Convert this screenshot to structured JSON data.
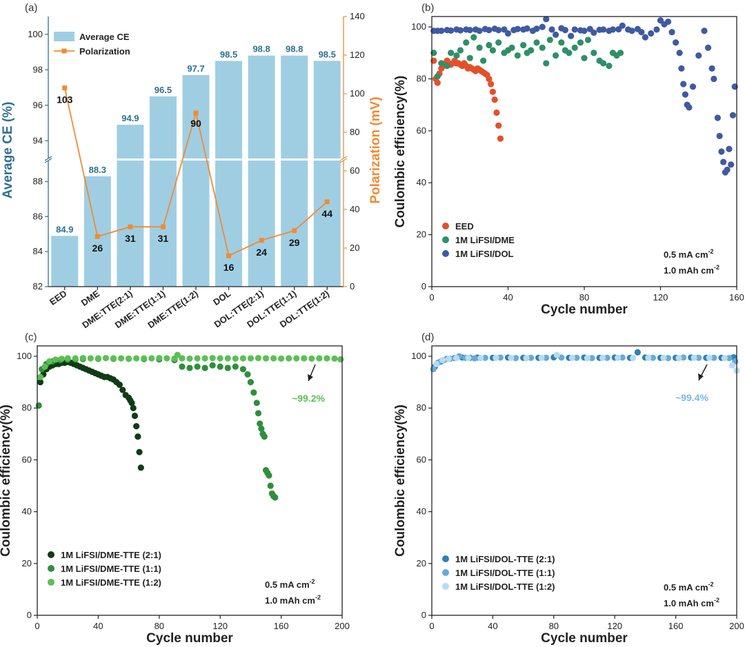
{
  "colors": {
    "bar": "#9fcee3",
    "bar_label": "#2e7091",
    "polarization": "#f28a30",
    "left_axis": "#2e7091",
    "right_axis": "#f28a30",
    "eed": "#e2512b",
    "dme": "#2f8f68",
    "dol": "#3f5aa2",
    "dmette_21": "#0f3c14",
    "dmette_11": "#2f8f3a",
    "dmette_12": "#5bbf55",
    "doltte_21": "#2d82b5",
    "doltte_11": "#6aaad8",
    "doltte_12": "#b6dcef",
    "annot_c": "#5bbf55",
    "annot_d": "#7ab8e0"
  },
  "chart_data": [
    {
      "panel": "(a)",
      "type": "bar",
      "categories": [
        "EED",
        "DME",
        "DME:TTE(2:1)",
        "DME:TTE(1:1)",
        "DME:TTE(1:2)",
        "DOL",
        "DOL:TTE(2:1)",
        "DOL:TTE(1:1)",
        "DOL:TTE(1:2)"
      ],
      "series": [
        {
          "name": "Average CE",
          "type": "bar",
          "axis": "left",
          "values": [
            84.9,
            88.3,
            94.9,
            96.5,
            97.7,
            98.5,
            98.8,
            98.8,
            98.5
          ],
          "labels": [
            "84.9",
            "88.3",
            "94.9",
            "96.5",
            "97.7",
            "98.5",
            "98.8",
            "98.8",
            "98.5"
          ]
        },
        {
          "name": "Polarization",
          "type": "line",
          "axis": "right",
          "values": [
            103,
            26,
            31,
            31,
            90,
            16,
            24,
            29,
            44
          ],
          "labels": [
            "103",
            "26",
            "31",
            "31",
            "90",
            "16",
            "24",
            "29",
            "44"
          ]
        }
      ],
      "ylabel": "Average CE (%)",
      "ylabel_right": "Polarization (mV)",
      "y_ticks_lower": [
        "82",
        "84",
        "86",
        "88"
      ],
      "y_ticks_upper": [
        "94",
        "96",
        "98",
        "100"
      ],
      "ylim_lower": [
        82,
        89.2
      ],
      "ylim_upper": [
        93,
        101
      ],
      "y2_ticks": [
        "0",
        "20",
        "40",
        "60",
        "80",
        "100",
        "120",
        "140"
      ],
      "y2lim": [
        0,
        140
      ],
      "axis_break": true,
      "legend": [
        "Average CE",
        "Polarization"
      ]
    },
    {
      "panel": "(b)",
      "type": "scatter",
      "xlabel": "Cycle number",
      "ylabel": "Coulombic efficiency(%)",
      "xlim": [
        0,
        160
      ],
      "ylim": [
        0,
        104
      ],
      "x_ticks": [
        "0",
        "40",
        "80",
        "120",
        "160"
      ],
      "y_ticks": [
        "0",
        "20",
        "40",
        "60",
        "80",
        "100"
      ],
      "legend": [
        "EED",
        "1M LiFSI/DME",
        "1M LiFSI/DOL"
      ],
      "conditions": [
        "0.5 mA cm",
        "1.0 mAh cm"
      ],
      "condition_exponent": "-2",
      "series": [
        {
          "name": "EED",
          "color_key": "eed",
          "x": [
            1,
            2,
            3,
            4,
            5,
            6,
            7,
            8,
            9,
            10,
            11,
            12,
            13,
            14,
            15,
            16,
            17,
            18,
            19,
            20,
            21,
            22,
            23,
            24,
            25,
            26,
            27,
            28,
            29,
            30,
            31,
            32,
            33,
            34,
            35,
            36
          ],
          "y": [
            87,
            80,
            78.5,
            82,
            84,
            85,
            86,
            87,
            86,
            85.5,
            86,
            87,
            86,
            86,
            85.5,
            85,
            86,
            85,
            84,
            84.5,
            84,
            83.5,
            83,
            84,
            83.5,
            83,
            82.5,
            82,
            81.5,
            80,
            78,
            75,
            72,
            67,
            62,
            57
          ]
        },
        {
          "name": "1M LiFSI/DME",
          "color_key": "dme",
          "x": [
            1,
            3,
            5,
            8,
            10,
            13,
            15,
            18,
            20,
            22,
            25,
            27,
            30,
            32,
            35,
            38,
            40,
            42,
            45,
            48,
            50,
            52,
            55,
            58,
            60,
            62,
            65,
            68,
            70,
            72,
            75,
            78,
            80,
            82,
            85,
            88,
            90,
            93,
            95,
            97,
            99
          ],
          "y": [
            90,
            81,
            86,
            85,
            90,
            89,
            91,
            94,
            88,
            96,
            92,
            87,
            93,
            91,
            94,
            90,
            91,
            92,
            89,
            93,
            90,
            91,
            94,
            92,
            86,
            95,
            89,
            94,
            91,
            90,
            92,
            94,
            88,
            95,
            90,
            87,
            86,
            85,
            90,
            89,
            90
          ]
        },
        {
          "name": "1M LiFSI/DOL",
          "color_key": "dol",
          "x": [
            1,
            3,
            5,
            8,
            10,
            13,
            15,
            18,
            20,
            23,
            25,
            28,
            30,
            33,
            35,
            38,
            40,
            43,
            45,
            48,
            50,
            53,
            55,
            58,
            60,
            63,
            65,
            68,
            70,
            73,
            75,
            78,
            80,
            83,
            85,
            88,
            90,
            93,
            95,
            98,
            100,
            103,
            105,
            108,
            110,
            112,
            115,
            118,
            120,
            122,
            124,
            126,
            128,
            130,
            131,
            132,
            133,
            134,
            135,
            137,
            140,
            143,
            145,
            147,
            148,
            150,
            151,
            152,
            153,
            154,
            155,
            156,
            157,
            158,
            159
          ],
          "y": [
            98.5,
            98.5,
            98.5,
            98.8,
            98.6,
            99,
            98.7,
            99,
            98.8,
            99,
            98.5,
            99.2,
            98.8,
            99.3,
            98.8,
            99,
            97.5,
            98.8,
            99.2,
            99,
            99.4,
            98.5,
            99.3,
            100,
            103,
            99,
            97,
            99.5,
            98.8,
            96.5,
            99,
            98.7,
            98.5,
            99.2,
            97.8,
            98.9,
            99,
            98.5,
            99,
            99.1,
            100.5,
            99,
            98.5,
            99.2,
            98,
            96,
            97.5,
            99,
            102.5,
            101,
            102,
            98,
            94,
            90,
            84,
            78,
            74,
            70,
            69,
            77,
            89,
            98.5,
            92,
            84,
            80,
            65,
            58,
            52,
            48,
            44,
            45,
            53,
            47,
            66,
            77
          ]
        }
      ]
    },
    {
      "panel": "(c)",
      "type": "scatter",
      "xlabel": "Cycle number",
      "ylabel": "Coulombic efficiency(%)",
      "xlim": [
        0,
        200
      ],
      "ylim": [
        0,
        104
      ],
      "x_ticks": [
        "0",
        "40",
        "80",
        "120",
        "160",
        "200"
      ],
      "y_ticks": [
        "0",
        "20",
        "40",
        "60",
        "80",
        "100"
      ],
      "legend": [
        "1M LiFSI/DME-TTE (2:1)",
        "1M LiFSI/DME-TTE (1:1)",
        "1M LiFSI/DME-TTE (1:2)"
      ],
      "conditions": [
        "0.5 mA cm",
        "1.0 mAh cm"
      ],
      "condition_exponent": "-2",
      "annotation": "~99.2%",
      "series": [
        {
          "name": "1M LiFSI/DME-TTE (2:1)",
          "color_key": "dmette_21",
          "x": [
            2,
            4,
            6,
            8,
            10,
            12,
            14,
            16,
            18,
            20,
            22,
            24,
            26,
            28,
            30,
            32,
            34,
            36,
            38,
            40,
            42,
            44,
            46,
            48,
            50,
            52,
            54,
            56,
            58,
            60,
            61,
            62,
            63,
            64,
            65,
            66,
            67,
            68
          ],
          "y": [
            90,
            93,
            95,
            96,
            96.5,
            97,
            97,
            97.5,
            97.5,
            97.8,
            97.5,
            97,
            96.5,
            96,
            95.5,
            95,
            94.5,
            94,
            93.5,
            93,
            92.5,
            92,
            92,
            91.5,
            91,
            90,
            89,
            87,
            85,
            84,
            83,
            82,
            80,
            77,
            73,
            69,
            63,
            57
          ]
        },
        {
          "name": "1M LiFSI/DME-TTE (1:1)",
          "color_key": "dmette_11",
          "x": [
            1,
            3,
            6,
            10,
            15,
            20,
            25,
            30,
            40,
            50,
            60,
            70,
            80,
            90,
            95,
            100,
            105,
            110,
            115,
            120,
            125,
            130,
            135,
            138,
            140,
            142,
            144,
            145,
            146,
            147,
            148,
            149,
            150,
            151,
            152,
            153,
            154,
            155,
            156
          ],
          "y": [
            81,
            95,
            97,
            98,
            98.5,
            98.7,
            98.8,
            98.9,
            99,
            99,
            99,
            98.9,
            98.8,
            98.5,
            96,
            95.5,
            96,
            95.5,
            96.5,
            96,
            95.5,
            96,
            95,
            93,
            90,
            86,
            82,
            78,
            74,
            72,
            70,
            69,
            56,
            55,
            54,
            50,
            47,
            46,
            45.5
          ]
        },
        {
          "name": "1M LiFSI/DME-TTE (1:2)",
          "color_key": "dmette_12",
          "x": [
            2,
            5,
            8,
            12,
            16,
            20,
            25,
            30,
            35,
            40,
            45,
            50,
            55,
            60,
            65,
            70,
            75,
            80,
            85,
            90,
            92,
            95,
            100,
            105,
            110,
            115,
            120,
            125,
            130,
            135,
            140,
            145,
            150,
            155,
            160,
            165,
            170,
            175,
            180,
            185,
            190,
            195,
            199
          ],
          "y": [
            92,
            96,
            98,
            98.7,
            99,
            99.2,
            99.2,
            99.3,
            99.2,
            99.2,
            99.3,
            99.2,
            99.2,
            99.1,
            99.2,
            99.2,
            99.2,
            99.3,
            99.2,
            99.1,
            100.5,
            99.2,
            99.1,
            99.2,
            99.2,
            99.3,
            99.2,
            99.2,
            99.1,
            99.2,
            99.2,
            99.3,
            99.2,
            99.2,
            99.1,
            99.2,
            99.2,
            99.2,
            99.1,
            99.2,
            99.2,
            99.1,
            98.8
          ]
        }
      ]
    },
    {
      "panel": "(d)",
      "type": "scatter",
      "xlabel": "Cycle number",
      "ylabel": "Coulombic efficiency(%)",
      "xlim": [
        0,
        200
      ],
      "ylim": [
        0,
        104
      ],
      "x_ticks": [
        "0",
        "40",
        "80",
        "120",
        "160",
        "200"
      ],
      "y_ticks": [
        "0",
        "20",
        "40",
        "60",
        "80",
        "100"
      ],
      "legend": [
        "1M LiFSI/DOL-TTE (2:1)",
        "1M LiFSI/DOL-TTE (1:1)",
        "1M LiFSI/DOL-TTE (1:2)"
      ],
      "conditions": [
        "0.5 mA cm",
        "1.0 mAh cm"
      ],
      "condition_exponent": "-2",
      "annotation": "~99.4%",
      "series": [
        {
          "name": "1M LiFSI/DOL-TTE (2:1)",
          "color_key": "doltte_21",
          "x": [
            2,
            6,
            10,
            15,
            20,
            25,
            30,
            40,
            50,
            60,
            70,
            80,
            90,
            100,
            110,
            120,
            130,
            135,
            140,
            150,
            160,
            170,
            180,
            190,
            198
          ],
          "y": [
            96,
            98,
            99,
            99.3,
            99.5,
            99.4,
            99.5,
            99.4,
            99.5,
            99.4,
            99.4,
            99.6,
            99.4,
            99.5,
            99.4,
            99.5,
            99.4,
            101.5,
            99.5,
            99.4,
            99.4,
            99.5,
            99.4,
            99.4,
            99.6
          ]
        },
        {
          "name": "1M LiFSI/DOL-TTE (1:1)",
          "color_key": "doltte_11",
          "x": [
            1,
            4,
            8,
            12,
            18,
            22,
            28,
            35,
            45,
            55,
            65,
            75,
            85,
            95,
            105,
            115,
            125,
            145,
            155,
            165,
            175,
            185,
            195,
            199
          ],
          "y": [
            95,
            97.5,
            98.5,
            99,
            100,
            99.4,
            99.2,
            99.4,
            99.5,
            99.3,
            99.4,
            99.4,
            99.5,
            99.4,
            99.3,
            99.4,
            99.5,
            99.4,
            99.3,
            99.5,
            99.4,
            99.4,
            99.3,
            98
          ]
        },
        {
          "name": "1M LiFSI/DOL-TTE (1:2)",
          "color_key": "doltte_12",
          "x": [
            3,
            7,
            11,
            16,
            24,
            32,
            42,
            52,
            62,
            72,
            82,
            92,
            102,
            112,
            122,
            132,
            142,
            152,
            162,
            172,
            182,
            192,
            197,
            200
          ],
          "y": [
            97,
            98.5,
            99,
            99.3,
            99.4,
            99.3,
            99.4,
            99.4,
            99.3,
            99.4,
            100.5,
            99.4,
            99.3,
            99.4,
            99.4,
            99.3,
            99.4,
            99.4,
            99.3,
            99.4,
            99.4,
            99.3,
            96.5,
            94.5
          ]
        }
      ]
    }
  ]
}
